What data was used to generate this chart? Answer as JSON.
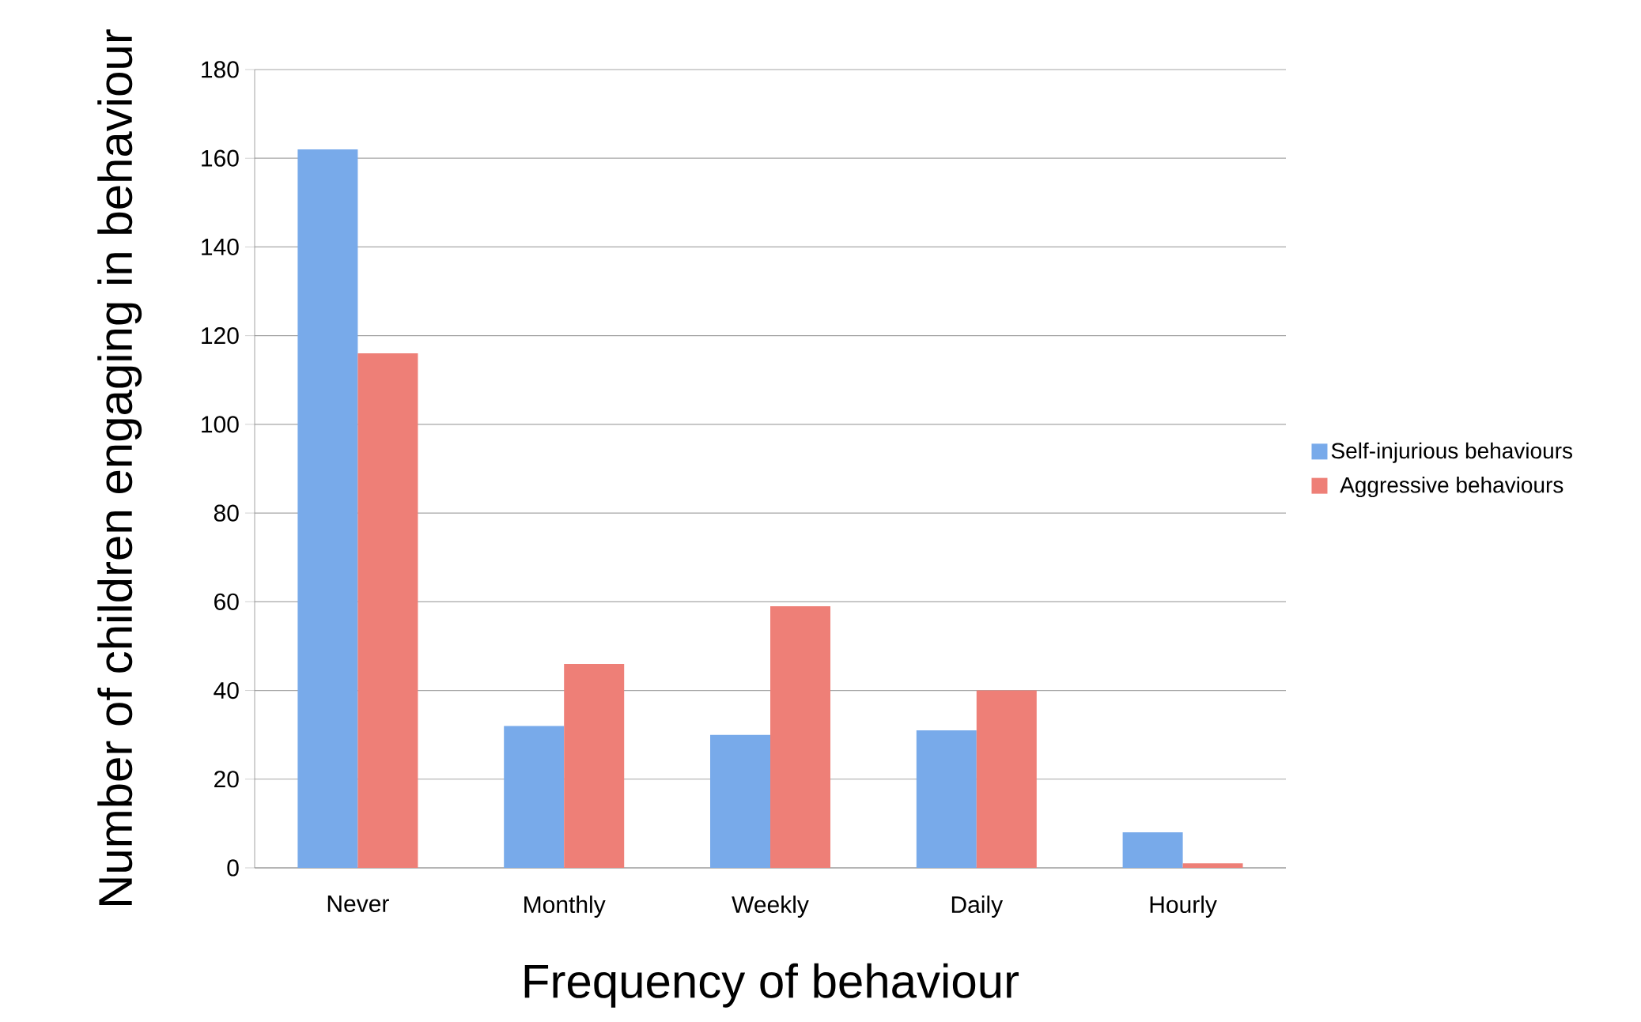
{
  "chart_data": {
    "type": "bar",
    "xlabel": "Frequency of behaviour",
    "ylabel": "Number of children engaging in behaviour",
    "categories": [
      "Never",
      "Monthly",
      "Weekly",
      "Daily",
      "Hourly"
    ],
    "series": [
      {
        "name": "Self-injurious behaviours",
        "color": "#78aaea",
        "values": [
          162,
          32,
          30,
          31,
          8
        ]
      },
      {
        "name": "Aggressive behaviours",
        "color": "#ee7f77",
        "values": [
          116,
          46,
          59,
          40,
          1
        ]
      }
    ],
    "ylim": [
      0,
      180
    ],
    "yticks": [
      0,
      20,
      40,
      60,
      80,
      100,
      120,
      140,
      160,
      180
    ],
    "grid": "y",
    "legend": "right"
  }
}
